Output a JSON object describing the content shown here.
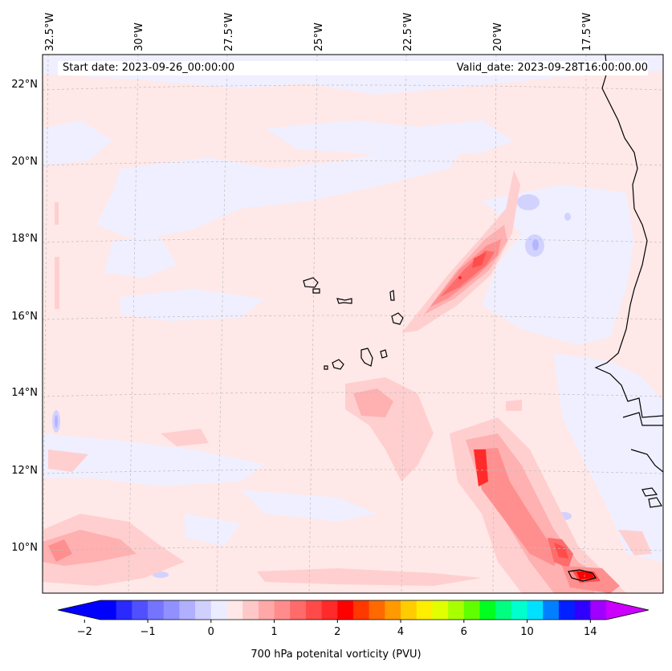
{
  "map": {
    "start_date": "Start date: 2023-09-26_00:00:00",
    "valid_date": "Valid_date: 2023-09-28T16:00:00.00",
    "lon_labels": [
      "32.5°W",
      "30°W",
      "27.5°W",
      "25°W",
      "22.5°W",
      "20°W",
      "17.5°W"
    ],
    "lat_labels": [
      "22°N",
      "20°N",
      "18°N",
      "16°N",
      "14°N",
      "12°N",
      "10°N"
    ],
    "background_color": "#ffe8e8"
  },
  "colorbar": {
    "label": "700 hPa potenital vorticity (PVU)",
    "tick_labels": [
      "−2",
      "−1",
      "0",
      "1",
      "2",
      "4",
      "6",
      "10",
      "14"
    ],
    "colors": [
      "#0000ff",
      "#2a2aff",
      "#5050ff",
      "#7474ff",
      "#9090ff",
      "#b0b0ff",
      "#d0d0ff",
      "#ececff",
      "#ffe8e8",
      "#ffc8c8",
      "#ffa8a8",
      "#ff8c8c",
      "#ff6a6a",
      "#ff4a4a",
      "#ff2a2a",
      "#ff0000",
      "#ff3800",
      "#ff6a00",
      "#ff9a00",
      "#ffcc00",
      "#ffee00",
      "#e0ff00",
      "#a8ff00",
      "#60ff00",
      "#00ff20",
      "#00ff80",
      "#00ffcc",
      "#00e0ff",
      "#0080ff",
      "#0020ff",
      "#3000ff",
      "#a000ff"
    ],
    "extend_low_color": "#0000ff",
    "extend_high_color": "#cc00ff"
  }
}
